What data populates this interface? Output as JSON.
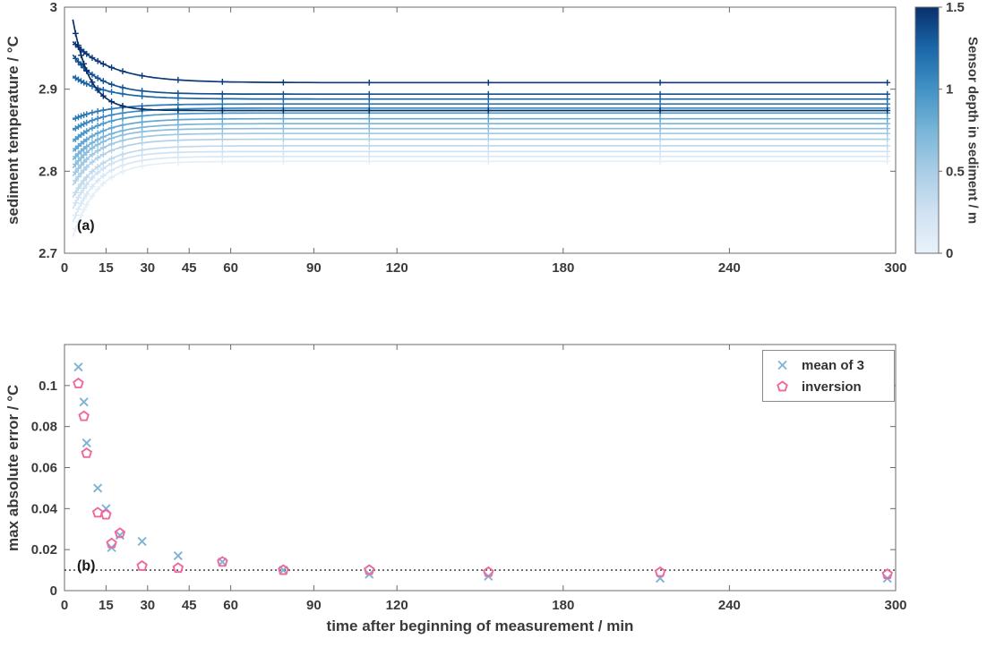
{
  "figure": {
    "background": "#ffffff",
    "text_color": "#3a3a3a",
    "axis_color": "#6b6b6b"
  },
  "chart_data": [
    {
      "panel": "a",
      "panel_label": "(a)",
      "type": "line",
      "ylabel": "sediment temperature / °C",
      "xlim": [
        0,
        300
      ],
      "ylim": [
        2.7,
        3.0
      ],
      "xticks": [
        0,
        15,
        30,
        45,
        60,
        90,
        120,
        180,
        240,
        300
      ],
      "xtick_labels": [
        "0",
        "15",
        "30",
        "45",
        "60",
        "90",
        "120",
        "180",
        "240",
        "300"
      ],
      "yticks": [
        2.7,
        2.8,
        2.9,
        3
      ],
      "ytick_labels": [
        "2.7",
        "2.8",
        "2.9",
        "3"
      ],
      "marker": "+",
      "sample_times_min": [
        4,
        5,
        6,
        7,
        8,
        10,
        12,
        14,
        17,
        21,
        28,
        41,
        57,
        79,
        110,
        153,
        215,
        297
      ],
      "curve_model": "T(t) = T_end + (T_start - T_end) * exp(-(t-3)/tau)",
      "series": [
        {
          "depth_m": 0.05,
          "T_start": 2.72,
          "T_end": 2.812,
          "tau_min": 9
        },
        {
          "depth_m": 0.15,
          "T_start": 2.738,
          "T_end": 2.818,
          "tau_min": 9
        },
        {
          "depth_m": 0.25,
          "T_start": 2.754,
          "T_end": 2.824,
          "tau_min": 9
        },
        {
          "depth_m": 0.35,
          "T_start": 2.768,
          "T_end": 2.831,
          "tau_min": 10
        },
        {
          "depth_m": 0.45,
          "T_start": 2.783,
          "T_end": 2.839,
          "tau_min": 10
        },
        {
          "depth_m": 0.55,
          "T_start": 2.794,
          "T_end": 2.846,
          "tau_min": 10
        },
        {
          "depth_m": 0.65,
          "T_start": 2.804,
          "T_end": 2.852,
          "tau_min": 10
        },
        {
          "depth_m": 0.75,
          "T_start": 2.814,
          "T_end": 2.858,
          "tau_min": 11
        },
        {
          "depth_m": 0.85,
          "T_start": 2.824,
          "T_end": 2.864,
          "tau_min": 11
        },
        {
          "depth_m": 0.95,
          "T_start": 2.836,
          "T_end": 2.871,
          "tau_min": 11
        },
        {
          "depth_m": 1.05,
          "T_start": 2.85,
          "T_end": 2.877,
          "tau_min": 12
        },
        {
          "depth_m": 1.15,
          "T_start": 2.863,
          "T_end": 2.882,
          "tau_min": 12
        },
        {
          "depth_m": 1.25,
          "T_start": 2.916,
          "T_end": 2.888,
          "tau_min": 12
        },
        {
          "depth_m": 1.35,
          "T_start": 2.942,
          "T_end": 2.894,
          "tau_min": 10
        },
        {
          "depth_m": 1.45,
          "T_start": 2.958,
          "T_end": 2.908,
          "tau_min": 14
        },
        {
          "depth_m": 1.5,
          "T_start": 2.985,
          "T_end": 2.874,
          "tau_min": 6
        }
      ],
      "colorbar": {
        "label": "Sensor depth in sediment / m",
        "range": [
          0,
          1.5
        ],
        "ticks": [
          0,
          0.5,
          1,
          1.5
        ],
        "tick_labels": [
          "0",
          "0.5",
          "1",
          "1.5"
        ],
        "stops": [
          "#e9f2fa",
          "#d0e2f2",
          "#a9cde6",
          "#78b5d8",
          "#4292c6",
          "#1b67a9",
          "#08306b"
        ]
      }
    },
    {
      "panel": "b",
      "panel_label": "(b)",
      "type": "scatter",
      "xlabel": "time after beginning of measurement / min",
      "ylabel": "max absolute error / °C",
      "xlim": [
        0,
        300
      ],
      "ylim": [
        0,
        0.12
      ],
      "xticks": [
        0,
        15,
        30,
        45,
        60,
        90,
        120,
        180,
        240,
        300
      ],
      "xtick_labels": [
        "0",
        "15",
        "30",
        "45",
        "60",
        "90",
        "120",
        "180",
        "240",
        "300"
      ],
      "yticks": [
        0,
        0.02,
        0.04,
        0.06,
        0.08,
        0.1
      ],
      "ytick_labels": [
        "0",
        "0.02",
        "0.04",
        "0.06",
        "0.08",
        "0.1"
      ],
      "x": [
        5,
        7,
        8,
        12,
        15,
        17,
        20,
        28,
        41,
        57,
        79,
        110,
        153,
        215,
        297
      ],
      "series": [
        {
          "name": "mean of 3",
          "marker": "x",
          "color": "#7fb3d5",
          "values": [
            0.109,
            0.092,
            0.072,
            0.05,
            0.04,
            0.021,
            0.027,
            0.024,
            0.017,
            0.014,
            0.01,
            0.008,
            0.007,
            0.006,
            0.006
          ]
        },
        {
          "name": "inversion",
          "marker": "pentagon",
          "color": "#f0679d",
          "values": [
            0.101,
            0.085,
            0.067,
            0.038,
            0.037,
            0.023,
            0.028,
            0.012,
            0.011,
            0.014,
            0.01,
            0.01,
            0.009,
            0.009,
            0.008
          ]
        }
      ],
      "threshold_line": {
        "y": 0.01,
        "style": "dotted",
        "color": "#000000"
      },
      "legend": {
        "position": "northeast"
      }
    }
  ]
}
